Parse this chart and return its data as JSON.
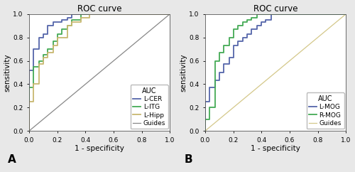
{
  "title": "ROC curve",
  "xlabel": "1 - specificity",
  "ylabel": "sensitivity",
  "fig_background": "#e8e8e8",
  "plot_background": "#ffffff",
  "panel_A": {
    "label": "A",
    "curves": [
      {
        "name": "L-CER",
        "color": "#5566aa",
        "lw": 1.3,
        "x": [
          0.0,
          0.0,
          0.03,
          0.03,
          0.07,
          0.07,
          0.1,
          0.1,
          0.13,
          0.13,
          0.17,
          0.17,
          0.2,
          0.2,
          0.23,
          0.23,
          0.27,
          0.27,
          0.3,
          0.3,
          0.47,
          0.47,
          0.53,
          0.53,
          1.0
        ],
        "y": [
          0.0,
          0.52,
          0.52,
          0.7,
          0.7,
          0.8,
          0.8,
          0.83,
          0.83,
          0.9,
          0.9,
          0.93,
          0.93,
          0.93,
          0.93,
          0.95,
          0.95,
          0.97,
          0.97,
          1.0,
          1.0,
          1.0,
          1.0,
          1.0,
          1.0
        ]
      },
      {
        "name": "L-ITG",
        "color": "#44aa55",
        "lw": 1.3,
        "x": [
          0.0,
          0.0,
          0.03,
          0.03,
          0.07,
          0.07,
          0.1,
          0.1,
          0.13,
          0.13,
          0.17,
          0.17,
          0.2,
          0.2,
          0.23,
          0.23,
          0.27,
          0.27,
          0.3,
          0.3,
          0.37,
          0.37,
          0.47,
          0.47,
          0.53,
          0.53,
          1.0
        ],
        "y": [
          0.0,
          0.37,
          0.37,
          0.55,
          0.55,
          0.6,
          0.6,
          0.65,
          0.65,
          0.7,
          0.7,
          0.77,
          0.77,
          0.83,
          0.83,
          0.87,
          0.87,
          0.9,
          0.9,
          0.95,
          0.95,
          1.0,
          1.0,
          1.0,
          1.0,
          1.0,
          1.0
        ]
      },
      {
        "name": "L-Hipp",
        "color": "#c8b870",
        "lw": 1.3,
        "x": [
          0.0,
          0.0,
          0.03,
          0.03,
          0.07,
          0.07,
          0.1,
          0.1,
          0.13,
          0.13,
          0.17,
          0.17,
          0.2,
          0.2,
          0.27,
          0.27,
          0.3,
          0.3,
          0.37,
          0.37,
          0.43,
          0.43,
          0.5,
          0.5,
          1.0
        ],
        "y": [
          0.0,
          0.25,
          0.25,
          0.4,
          0.4,
          0.57,
          0.57,
          0.63,
          0.63,
          0.67,
          0.67,
          0.73,
          0.73,
          0.8,
          0.8,
          0.9,
          0.9,
          0.93,
          0.93,
          0.97,
          0.97,
          1.0,
          1.0,
          1.0,
          1.0
        ]
      }
    ],
    "guide_color": "#888888",
    "guide_lw": 0.9
  },
  "panel_B": {
    "label": "B",
    "curves": [
      {
        "name": "L-MOG",
        "color": "#5566aa",
        "lw": 1.3,
        "x": [
          0.0,
          0.0,
          0.03,
          0.03,
          0.07,
          0.07,
          0.1,
          0.1,
          0.13,
          0.13,
          0.17,
          0.17,
          0.2,
          0.2,
          0.23,
          0.23,
          0.27,
          0.27,
          0.3,
          0.3,
          0.33,
          0.33,
          0.37,
          0.37,
          0.4,
          0.4,
          0.43,
          0.43,
          0.47,
          0.47,
          0.8,
          0.8,
          1.0
        ],
        "y": [
          0.0,
          0.25,
          0.25,
          0.37,
          0.37,
          0.43,
          0.43,
          0.5,
          0.5,
          0.57,
          0.57,
          0.63,
          0.63,
          0.73,
          0.73,
          0.77,
          0.77,
          0.8,
          0.8,
          0.83,
          0.83,
          0.87,
          0.87,
          0.9,
          0.9,
          0.93,
          0.93,
          0.95,
          0.95,
          1.0,
          1.0,
          1.0,
          1.0
        ]
      },
      {
        "name": "R-MOG",
        "color": "#44aa55",
        "lw": 1.3,
        "x": [
          0.0,
          0.0,
          0.03,
          0.03,
          0.07,
          0.07,
          0.1,
          0.1,
          0.13,
          0.13,
          0.17,
          0.17,
          0.2,
          0.2,
          0.23,
          0.23,
          0.27,
          0.27,
          0.3,
          0.3,
          0.33,
          0.33,
          0.37,
          0.37,
          0.4,
          0.4,
          0.47,
          0.47,
          0.5,
          0.5,
          1.0
        ],
        "y": [
          0.0,
          0.1,
          0.1,
          0.2,
          0.2,
          0.6,
          0.6,
          0.67,
          0.67,
          0.73,
          0.73,
          0.8,
          0.8,
          0.87,
          0.87,
          0.9,
          0.9,
          0.93,
          0.93,
          0.95,
          0.95,
          0.97,
          0.97,
          1.0,
          1.0,
          1.0,
          1.0,
          1.0,
          1.0,
          1.0,
          1.0
        ]
      }
    ],
    "guide_color": "#d4c88a",
    "guide_lw": 0.9
  },
  "tick_fontsize": 6.5,
  "label_fontsize": 7.5,
  "title_fontsize": 8.5,
  "legend_fontsize": 6.5,
  "xticks": [
    0.0,
    0.2,
    0.4,
    0.6,
    0.8,
    1.0
  ],
  "yticks": [
    0.0,
    0.2,
    0.4,
    0.6,
    0.8,
    1.0
  ]
}
